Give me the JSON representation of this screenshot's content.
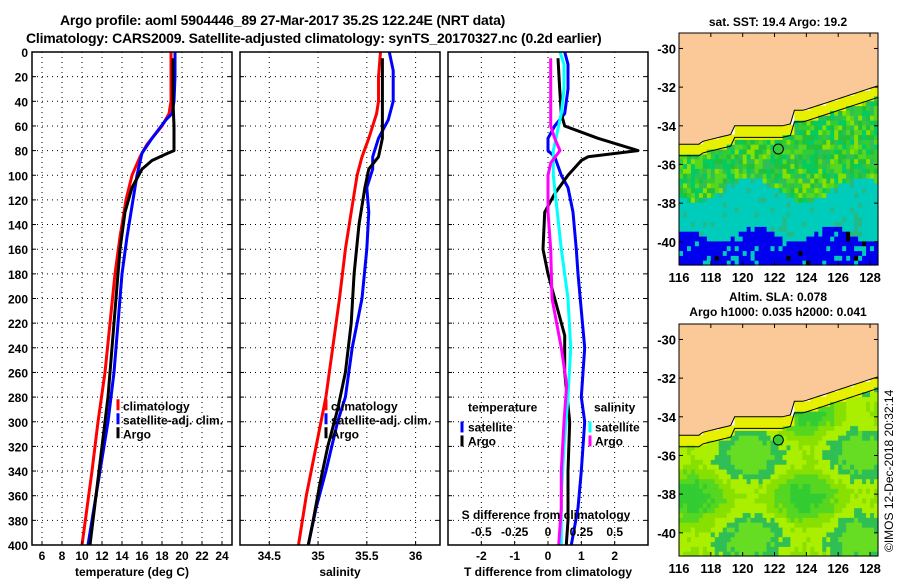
{
  "header": {
    "title_line1": "Argo profile: aoml 5904446_89 27-Mar-2017 35.2S 122.24E (NRT data)",
    "title_line2": "Climatology: CARS2009. Satellite-adjusted climatology: synTS_20170327.nc (0.2d earlier)"
  },
  "colors": {
    "climatology": "#ff0000",
    "satellite_adj": "#0000ff",
    "argo": "#000000",
    "salinity_satellite": "#00ffff",
    "salinity_argo": "#ff00ff",
    "land": "#fbc897"
  },
  "chart_data": [
    {
      "type": "line",
      "id": "temperature-profile",
      "xlabel": "temperature (deg C)",
      "ylabel": "depth",
      "xlim": [
        5,
        25
      ],
      "ylim": [
        400,
        0
      ],
      "xticks": [
        6,
        8,
        10,
        12,
        14,
        16,
        18,
        20,
        22,
        24
      ],
      "yticks": [
        0,
        20,
        40,
        60,
        80,
        100,
        120,
        140,
        160,
        180,
        200,
        220,
        240,
        260,
        280,
        300,
        320,
        340,
        360,
        380,
        400
      ],
      "grid": true,
      "legend": {
        "position": "mid-right",
        "entries": [
          "climatology",
          "satellite-adj. clim.",
          "Argo"
        ]
      },
      "series": [
        {
          "name": "climatology",
          "color": "#ff0000",
          "points": [
            [
              18.9,
              0
            ],
            [
              18.9,
              20
            ],
            [
              18.9,
              40
            ],
            [
              18.7,
              50
            ],
            [
              18.0,
              60
            ],
            [
              16.5,
              75
            ],
            [
              15.8,
              85
            ],
            [
              15.0,
              100
            ],
            [
              14.4,
              120
            ],
            [
              13.8,
              150
            ],
            [
              13.3,
              180
            ],
            [
              12.8,
              220
            ],
            [
              12.3,
              260
            ],
            [
              11.6,
              300
            ],
            [
              11.0,
              340
            ],
            [
              10.5,
              370
            ],
            [
              10.0,
              400
            ]
          ]
        },
        {
          "name": "satellite-adj. clim.",
          "color": "#0000ff",
          "points": [
            [
              19.3,
              0
            ],
            [
              19.3,
              20
            ],
            [
              19.2,
              40
            ],
            [
              19.0,
              50
            ],
            [
              18.4,
              55
            ],
            [
              17.0,
              70
            ],
            [
              16.0,
              82
            ],
            [
              15.5,
              100
            ],
            [
              15.1,
              120
            ],
            [
              14.5,
              150
            ],
            [
              14.0,
              180
            ],
            [
              13.6,
              220
            ],
            [
              13.2,
              260
            ],
            [
              12.6,
              300
            ],
            [
              11.8,
              340
            ],
            [
              11.2,
              370
            ],
            [
              10.6,
              400
            ]
          ]
        },
        {
          "name": "Argo",
          "color": "#000000",
          "points": [
            [
              19.1,
              5
            ],
            [
              19.1,
              40
            ],
            [
              19.2,
              60
            ],
            [
              19.2,
              80
            ],
            [
              18.6,
              82
            ],
            [
              17.0,
              88
            ],
            [
              16.0,
              95
            ],
            [
              15.0,
              110
            ],
            [
              14.3,
              130
            ],
            [
              13.8,
              160
            ],
            [
              13.4,
              200
            ],
            [
              13.0,
              240
            ],
            [
              12.6,
              280
            ],
            [
              12.0,
              320
            ],
            [
              11.4,
              360
            ],
            [
              10.8,
              400
            ]
          ]
        }
      ]
    },
    {
      "type": "line",
      "id": "salinity-profile",
      "xlabel": "salinity",
      "xlim": [
        34.2,
        36.25
      ],
      "ylim": [
        400,
        0
      ],
      "xticks": [
        34.5,
        35,
        35.5,
        36
      ],
      "grid": true,
      "legend": {
        "position": "mid-right",
        "entries": [
          "climatology",
          "satellite-adj. clim.",
          "Argo"
        ]
      },
      "series": [
        {
          "name": "climatology",
          "color": "#ff0000",
          "points": [
            [
              35.64,
              0
            ],
            [
              35.62,
              20
            ],
            [
              35.62,
              40
            ],
            [
              35.6,
              50
            ],
            [
              35.52,
              70
            ],
            [
              35.45,
              85
            ],
            [
              35.4,
              100
            ],
            [
              35.34,
              130
            ],
            [
              35.28,
              160
            ],
            [
              35.22,
              200
            ],
            [
              35.15,
              240
            ],
            [
              35.08,
              280
            ],
            [
              34.98,
              320
            ],
            [
              34.88,
              360
            ],
            [
              34.8,
              400
            ]
          ]
        },
        {
          "name": "satellite-adj. clim.",
          "color": "#0000ff",
          "points": [
            [
              35.73,
              0
            ],
            [
              35.77,
              15
            ],
            [
              35.77,
              40
            ],
            [
              35.72,
              55
            ],
            [
              35.62,
              70
            ],
            [
              35.56,
              85
            ],
            [
              35.56,
              95
            ],
            [
              35.5,
              110
            ],
            [
              35.52,
              130
            ],
            [
              35.5,
              160
            ],
            [
              35.45,
              200
            ],
            [
              35.35,
              240
            ],
            [
              35.28,
              280
            ],
            [
              35.2,
              300
            ],
            [
              35.08,
              340
            ],
            [
              34.98,
              370
            ],
            [
              34.9,
              400
            ]
          ]
        },
        {
          "name": "Argo",
          "color": "#000000",
          "points": [
            [
              35.66,
              5
            ],
            [
              35.66,
              40
            ],
            [
              35.66,
              70
            ],
            [
              35.62,
              85
            ],
            [
              35.52,
              95
            ],
            [
              35.48,
              110
            ],
            [
              35.42,
              140
            ],
            [
              35.37,
              180
            ],
            [
              35.34,
              220
            ],
            [
              35.28,
              260
            ],
            [
              35.2,
              290
            ],
            [
              35.1,
              320
            ],
            [
              35.02,
              350
            ],
            [
              34.95,
              380
            ],
            [
              34.9,
              400
            ]
          ]
        }
      ]
    },
    {
      "type": "line",
      "id": "difference-profile",
      "xlabel": "T difference from climatology",
      "xlabel_top": "S difference from climatology",
      "xlim": [
        -3,
        3
      ],
      "ylim": [
        400,
        0
      ],
      "xticks": [
        -2,
        -1,
        0,
        1,
        2
      ],
      "xticks_salinity": [
        -0.5,
        -0.25,
        0,
        0.25,
        0.5
      ],
      "grid": true,
      "legend": {
        "position": "lower",
        "temperature_header": "temperature",
        "salinity_header": "salinity",
        "temperature_entries": [
          "satellite",
          "Argo"
        ],
        "salinity_entries": [
          "satellite",
          "Argo"
        ]
      },
      "series": [
        {
          "name": "temperature satellite",
          "color": "#0000ff",
          "points": [
            [
              0.5,
              0
            ],
            [
              0.6,
              10
            ],
            [
              0.6,
              30
            ],
            [
              0.5,
              50
            ],
            [
              0.2,
              60
            ],
            [
              0.0,
              70
            ],
            [
              0.0,
              80
            ],
            [
              0.2,
              85
            ],
            [
              0.4,
              100
            ],
            [
              0.6,
              110
            ],
            [
              0.75,
              130
            ],
            [
              0.85,
              160
            ],
            [
              0.9,
              180
            ],
            [
              1.1,
              240
            ],
            [
              1.0,
              280
            ],
            [
              1.1,
              300
            ],
            [
              1.0,
              340
            ],
            [
              0.9,
              370
            ],
            [
              0.7,
              400
            ]
          ]
        },
        {
          "name": "temperature Argo",
          "color": "#000000",
          "points": [
            [
              0.3,
              5
            ],
            [
              0.35,
              30
            ],
            [
              0.4,
              50
            ],
            [
              0.5,
              60
            ],
            [
              1.5,
              70
            ],
            [
              2.7,
              80
            ],
            [
              1.2,
              85
            ],
            [
              1.0,
              88
            ],
            [
              0.6,
              100
            ],
            [
              0.2,
              115
            ],
            [
              -0.1,
              130
            ],
            [
              -0.15,
              160
            ],
            [
              0.0,
              180
            ],
            [
              0.2,
              200
            ],
            [
              0.5,
              230
            ],
            [
              0.5,
              260
            ],
            [
              0.65,
              300
            ],
            [
              0.6,
              340
            ],
            [
              0.6,
              380
            ],
            [
              0.55,
              400
            ]
          ]
        }
      ],
      "series_salinity": [
        {
          "name": "salinity satellite",
          "color": "#00ffff",
          "points": [
            [
              0.09,
              0
            ],
            [
              0.12,
              10
            ],
            [
              0.12,
              30
            ],
            [
              0.1,
              50
            ],
            [
              0.07,
              65
            ],
            [
              0.04,
              80
            ],
            [
              0.04,
              100
            ],
            [
              0.07,
              130
            ],
            [
              0.1,
              160
            ],
            [
              0.15,
              200
            ],
            [
              0.17,
              240
            ],
            [
              0.15,
              280
            ],
            [
              0.12,
              320
            ],
            [
              0.1,
              360
            ],
            [
              0.1,
              400
            ]
          ]
        },
        {
          "name": "salinity Argo",
          "color": "#ff00ff",
          "points": [
            [
              0.02,
              5
            ],
            [
              0.02,
              40
            ],
            [
              0.02,
              60
            ],
            [
              0.05,
              70
            ],
            [
              0.09,
              80
            ],
            [
              0.02,
              90
            ],
            [
              0.0,
              100
            ],
            [
              0.0,
              130
            ],
            [
              0.02,
              160
            ],
            [
              0.03,
              200
            ],
            [
              0.1,
              240
            ],
            [
              0.14,
              270
            ],
            [
              0.12,
              300
            ],
            [
              0.1,
              340
            ],
            [
              0.1,
              370
            ],
            [
              0.08,
              400
            ]
          ]
        }
      ]
    },
    {
      "type": "heatmap",
      "id": "sst-map",
      "title": "sat. SST: 19.4 Argo: 19.2",
      "xlim": [
        116,
        128.5
      ],
      "ylim": [
        -41.2,
        -29.2
      ],
      "xticks": [
        116,
        118,
        120,
        122,
        124,
        126,
        128
      ],
      "yticks": [
        -30,
        -32,
        -34,
        -36,
        -38,
        -40
      ],
      "argo_position": [
        122.24,
        -35.2
      ]
    },
    {
      "type": "heatmap",
      "id": "sla-map",
      "title_line1": "Altim. SLA: 0.078",
      "title_line2": "Argo h1000: 0.035 h2000: 0.041",
      "xlim": [
        116,
        128.5
      ],
      "ylim": [
        -41.2,
        -29.2
      ],
      "xticks": [
        116,
        118,
        120,
        122,
        124,
        126,
        128
      ],
      "yticks": [
        -30,
        -32,
        -34,
        -36,
        -38,
        -40
      ],
      "argo_position": [
        122.24,
        -35.2
      ]
    }
  ],
  "footer": {
    "credit": "©IMOS 12-Dec-2018 20:32:14"
  }
}
